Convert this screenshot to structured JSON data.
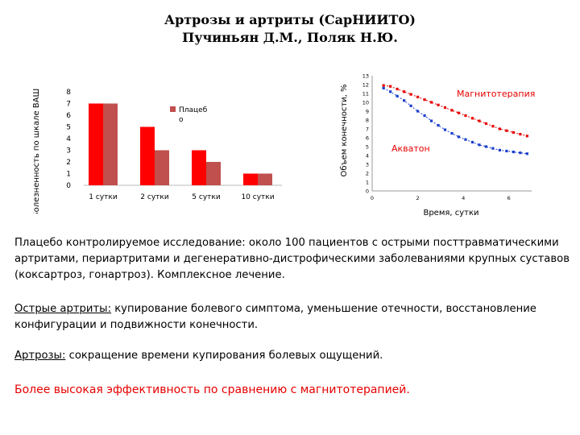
{
  "title": {
    "line1": "Артрозы и артриты (СарНИИТО)",
    "line2": "Пучиньян Д.М., Поляк Н.Ю."
  },
  "chart_data": [
    {
      "type": "bar",
      "categories": [
        "1 сутки",
        "2 сутки",
        "5 сутки",
        "10 сутки"
      ],
      "series": [
        {
          "values": [
            7,
            5,
            3,
            1
          ],
          "color": "#ff0000"
        },
        {
          "name": "Плацебо",
          "values": [
            7,
            3,
            2,
            1
          ],
          "color": "#c0504d"
        }
      ],
      "ylabel": "Болезненность по шкале ВАШ",
      "ylim": [
        0,
        8
      ],
      "yticks": [
        "0",
        "1",
        "2",
        "3",
        "4",
        "5",
        "6",
        "7",
        "8"
      ],
      "legend_line1": "Плацеб",
      "legend_line2": "о",
      "legend": "top-right"
    },
    {
      "type": "line",
      "xlabel": "Время, сутки",
      "ylabel": "Объем конечности, %",
      "xlim": [
        0,
        7
      ],
      "ylim": [
        0,
        13
      ],
      "xticks": [
        "0",
        "2",
        "4",
        "6"
      ],
      "yticks": [
        "0",
        "1",
        "2",
        "3",
        "4",
        "5",
        "6",
        "7",
        "8",
        "9",
        "10",
        "11",
        "12",
        "13"
      ],
      "series": [
        {
          "name": "Магнитотерапия",
          "color": "#e60000",
          "x": [
            0.5,
            0.8,
            1.1,
            1.4,
            1.7,
            2.0,
            2.3,
            2.6,
            2.9,
            3.2,
            3.5,
            3.8,
            4.1,
            4.4,
            4.7,
            5.0,
            5.3,
            5.6,
            5.9,
            6.2,
            6.5,
            6.8
          ],
          "y": [
            11.9,
            11.8,
            11.5,
            11.2,
            10.9,
            10.6,
            10.3,
            10.0,
            9.7,
            9.4,
            9.1,
            8.8,
            8.5,
            8.2,
            7.9,
            7.6,
            7.3,
            7.0,
            6.8,
            6.6,
            6.4,
            6.2
          ]
        },
        {
          "name": "Акватон",
          "color": "#1a3fcc",
          "x": [
            0.5,
            0.8,
            1.1,
            1.4,
            1.7,
            2.0,
            2.3,
            2.6,
            2.9,
            3.2,
            3.5,
            3.8,
            4.1,
            4.4,
            4.7,
            5.0,
            5.3,
            5.6,
            5.9,
            6.2,
            6.5,
            6.8
          ],
          "y": [
            11.6,
            11.2,
            10.7,
            10.2,
            9.6,
            9.0,
            8.5,
            7.9,
            7.4,
            6.9,
            6.5,
            6.1,
            5.8,
            5.5,
            5.2,
            5.0,
            4.8,
            4.6,
            4.5,
            4.4,
            4.3,
            4.2
          ]
        }
      ]
    }
  ],
  "text": {
    "p1": "Плацебо контролируемое исследование: около 100 пациентов с острыми посттравматическими артритами, периартритами и дегенеративно-дистрофическими заболеваниями крупных суставов (коксартроз, гонартроз). Комплексное лечение.",
    "p2_label": "Острые артриты:",
    "p2": " купирование болевого симптома, уменьшение отечности, восстановление конфигурации и подвижности конечности.",
    "p3_label": "Артрозы:",
    "p3": " сокращение времени купирования болевых ощущений.",
    "p4": "Более высокая эффективность по сравнению с магнитотерапией."
  }
}
